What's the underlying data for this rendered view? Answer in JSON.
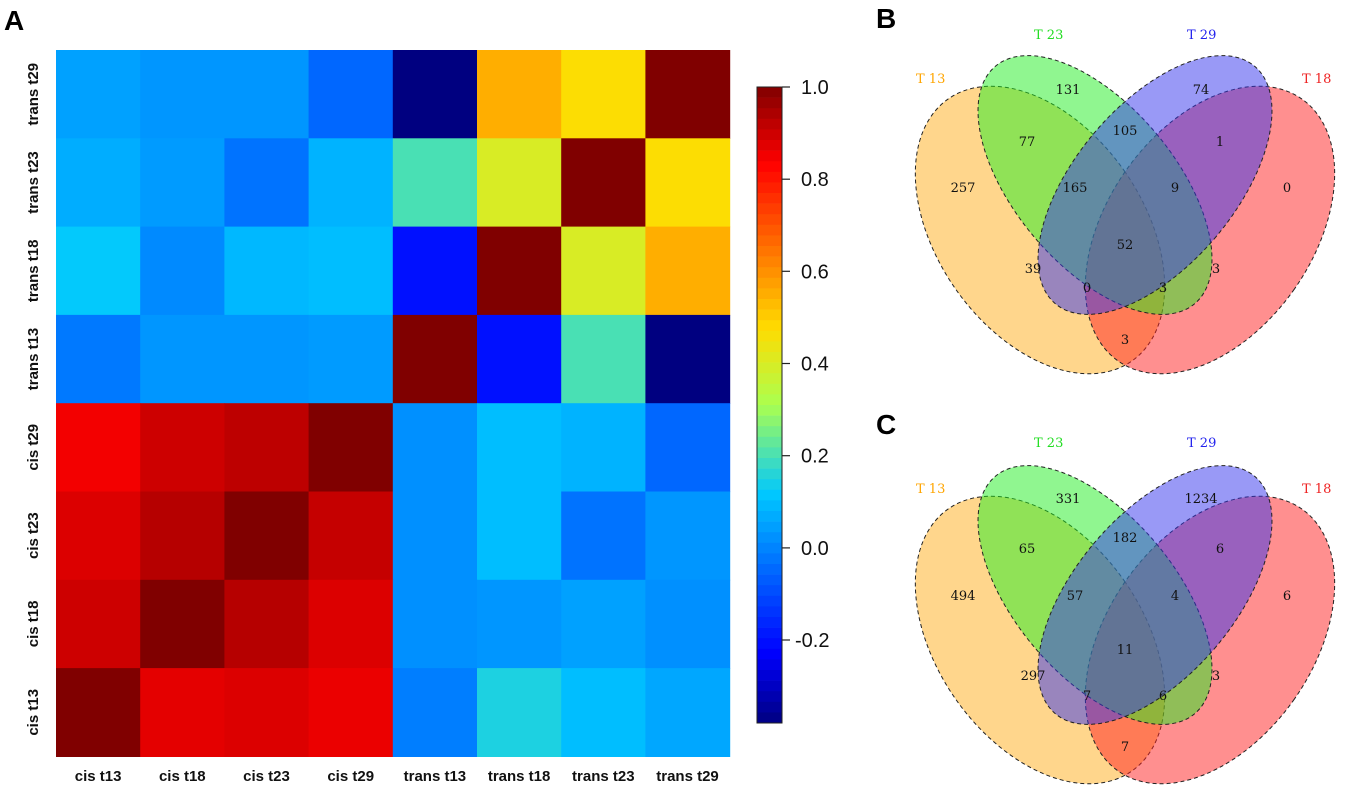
{
  "panels": {
    "a": "A",
    "b": "B",
    "c": "C"
  },
  "chart_data": [
    {
      "type": "heatmap",
      "columns": [
        "cis t13",
        "cis t18",
        "cis t23",
        "cis t29",
        "trans t13",
        "trans t18",
        "trans t23",
        "trans t29"
      ],
      "rows": [
        "trans t29",
        "trans t23",
        "trans t18",
        "trans t13",
        "cis t29",
        "cis t23",
        "cis t18",
        "cis t13"
      ],
      "values": [
        [
          0.05,
          0.03,
          0.03,
          -0.05,
          -0.38,
          0.55,
          0.47,
          1.0
        ],
        [
          0.07,
          0.04,
          -0.03,
          0.08,
          0.2,
          0.4,
          1.0,
          0.47
        ],
        [
          0.12,
          0.01,
          0.09,
          0.1,
          -0.2,
          1.0,
          0.4,
          0.55
        ],
        [
          -0.02,
          0.03,
          0.03,
          0.04,
          1.0,
          -0.2,
          0.2,
          -0.38
        ],
        [
          0.85,
          0.9,
          0.92,
          1.0,
          0.02,
          0.1,
          0.08,
          -0.05
        ],
        [
          0.88,
          0.93,
          1.0,
          0.91,
          0.02,
          0.1,
          -0.03,
          0.03
        ],
        [
          0.9,
          1.0,
          0.93,
          0.88,
          0.02,
          0.03,
          0.05,
          0.02
        ],
        [
          1.0,
          0.87,
          0.88,
          0.86,
          -0.01,
          0.15,
          0.1,
          0.06
        ]
      ],
      "colorbar": {
        "ticks": [
          "1.0",
          "0.8",
          "0.6",
          "0.4",
          "0.2",
          "0.0",
          "-0.2"
        ],
        "min": -0.38,
        "max": 1.0
      }
    },
    {
      "type": "venn",
      "sets": [
        {
          "name": "T 13",
          "color": "#ffa500"
        },
        {
          "name": "T 23",
          "color": "#22dd22"
        },
        {
          "name": "T 29",
          "color": "#2222ee"
        },
        {
          "name": "T 18",
          "color": "#ee2222"
        }
      ],
      "regions": {
        "only_t13": "257",
        "only_t23": "131",
        "only_t29": "74",
        "only_t18": "0",
        "t13_t23": "77",
        "t23_t29": "105",
        "t29_t18": "1",
        "t13_t23_t29": "165",
        "t23_t29_t18": "9",
        "all": "52",
        "t13_t29": "39",
        "t23_t18": "3",
        "t13_t29_t18": "0",
        "t13_t23_t18": "3",
        "t13_t18": "3"
      }
    },
    {
      "type": "venn",
      "sets": [
        {
          "name": "T 13",
          "color": "#ffa500"
        },
        {
          "name": "T 23",
          "color": "#22dd22"
        },
        {
          "name": "T 29",
          "color": "#2222ee"
        },
        {
          "name": "T 18",
          "color": "#ee2222"
        }
      ],
      "regions": {
        "only_t13": "494",
        "only_t23": "331",
        "only_t29": "1234",
        "only_t18": "6",
        "t13_t23": "65",
        "t23_t29": "182",
        "t29_t18": "6",
        "t13_t23_t29": "57",
        "t23_t29_t18": "4",
        "all": "11",
        "t13_t29": "297",
        "t23_t18": "3",
        "t13_t29_t18": "7",
        "t13_t23_t18": "6",
        "t13_t18": "7"
      }
    }
  ]
}
